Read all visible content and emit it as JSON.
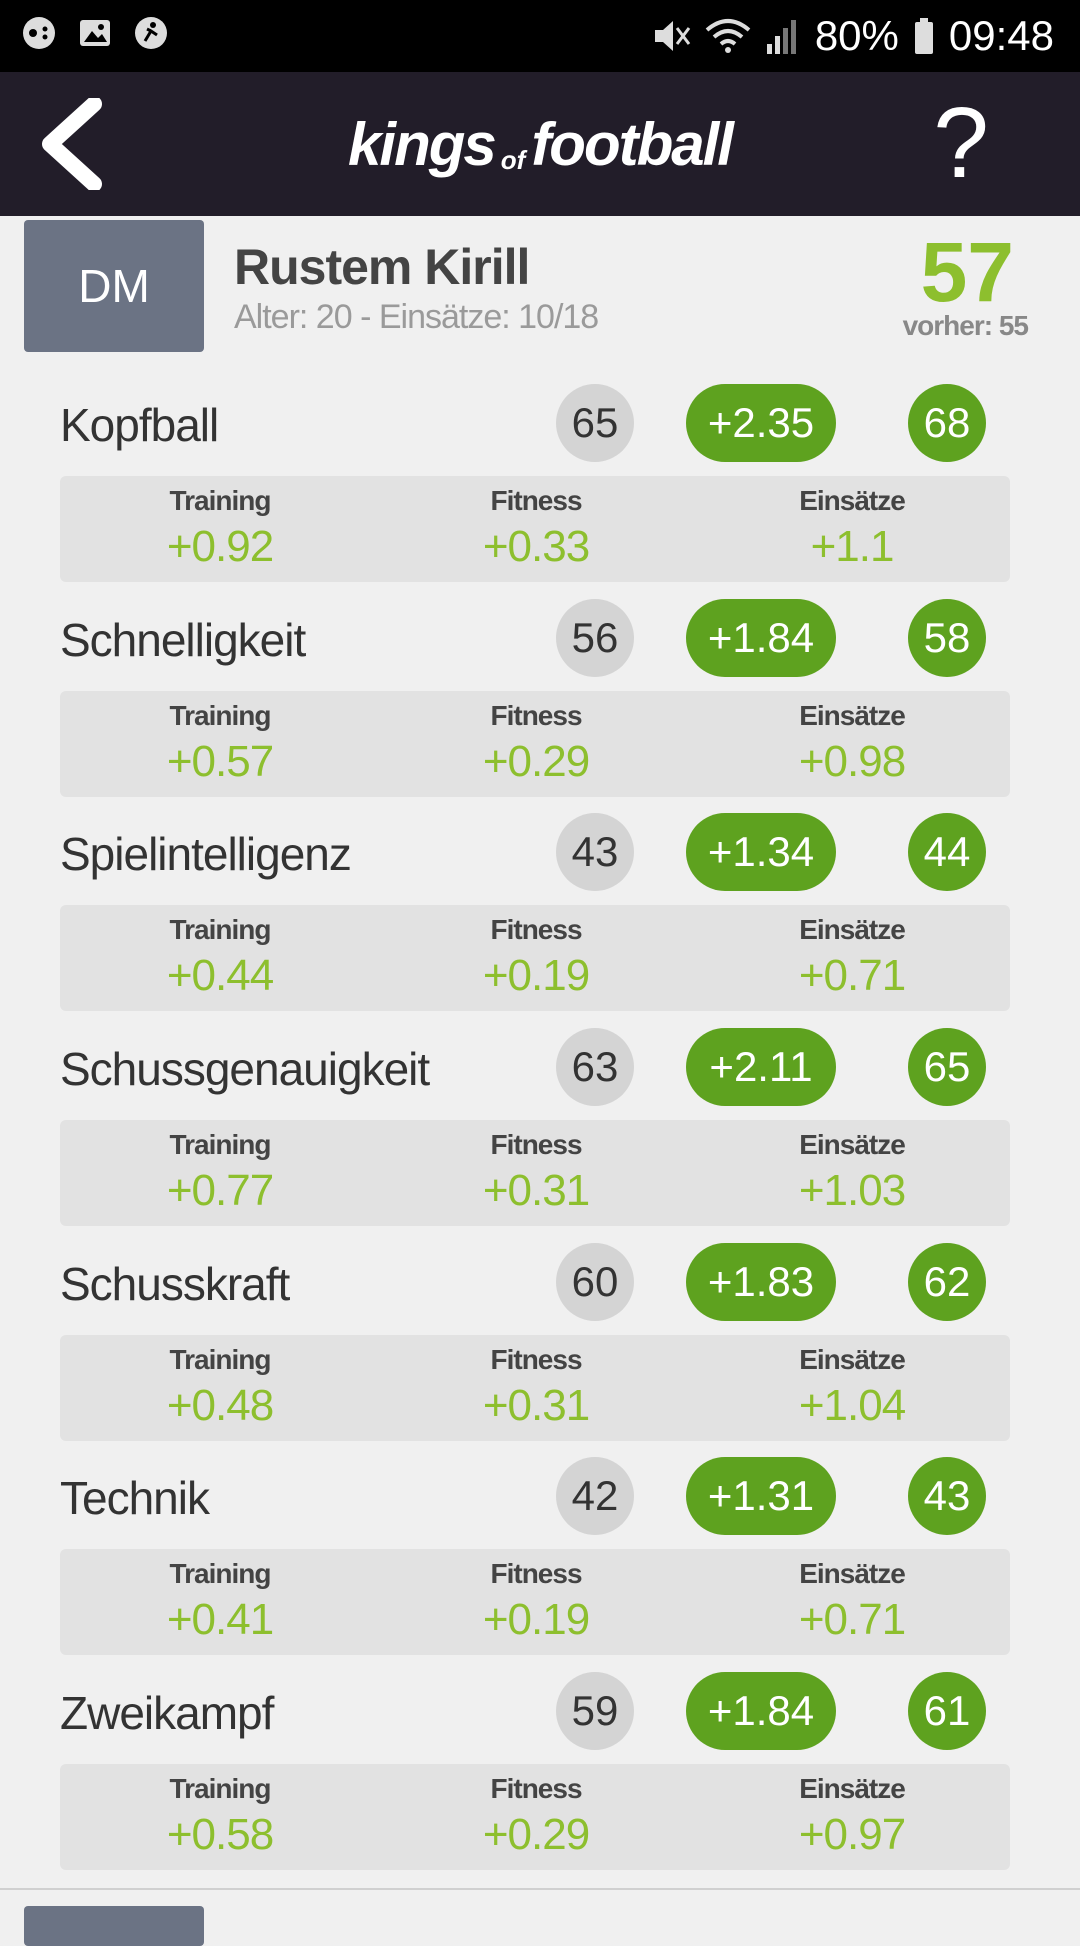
{
  "status_bar": {
    "battery": "80%",
    "time": "09:48"
  },
  "header": {
    "logo_main1": "kings",
    "logo_small": "of",
    "logo_main2": "football",
    "help_label": "?"
  },
  "player": {
    "position": "DM",
    "name": "Rustem Kirill",
    "meta": "Alter: 20 - Einsätze: 10/18",
    "rating": "57",
    "previous": "vorher: 55"
  },
  "breakdown_labels": {
    "training": "Training",
    "fitness": "Fitness",
    "einsaetze": "Einsätze"
  },
  "attributes": [
    {
      "name": "Kopfball",
      "old": "65",
      "delta": "+2.35",
      "new": "68",
      "training": "+0.92",
      "fitness": "+0.33",
      "einsaetze": "+1.1"
    },
    {
      "name": "Schnelligkeit",
      "old": "56",
      "delta": "+1.84",
      "new": "58",
      "training": "+0.57",
      "fitness": "+0.29",
      "einsaetze": "+0.98"
    },
    {
      "name": "Spielintelligenz",
      "old": "43",
      "delta": "+1.34",
      "new": "44",
      "training": "+0.44",
      "fitness": "+0.19",
      "einsaetze": "+0.71"
    },
    {
      "name": "Schussgenauigkeit",
      "old": "63",
      "delta": "+2.11",
      "new": "65",
      "training": "+0.77",
      "fitness": "+0.31",
      "einsaetze": "+1.03"
    },
    {
      "name": "Schusskraft",
      "old": "60",
      "delta": "+1.83",
      "new": "62",
      "training": "+0.48",
      "fitness": "+0.31",
      "einsaetze": "+1.04"
    },
    {
      "name": "Technik",
      "old": "42",
      "delta": "+1.31",
      "new": "43",
      "training": "+0.41",
      "fitness": "+0.19",
      "einsaetze": "+0.71"
    },
    {
      "name": "Zweikampf",
      "old": "59",
      "delta": "+1.84",
      "new": "61",
      "training": "+0.58",
      "fitness": "+0.29",
      "einsaetze": "+0.97"
    }
  ],
  "icons": {
    "back": "chevron-left-icon",
    "help": "question-mark-icon"
  },
  "colors": {
    "header_bg": "#221d29",
    "accent_green": "#5ea21f",
    "value_green": "#8dbf2e",
    "badge_gray": "#6b7384"
  }
}
